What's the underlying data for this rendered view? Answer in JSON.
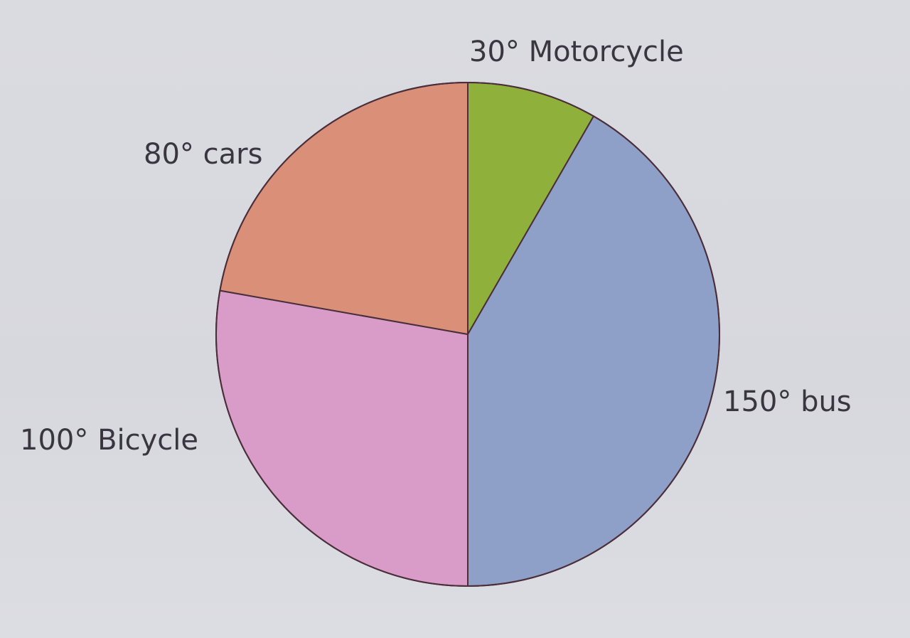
{
  "chart_data": {
    "type": "pie",
    "unit": "degrees",
    "slices": [
      {
        "label": "30° Motorcycle",
        "category": "Motorcycle",
        "value": 30,
        "color": "#8fb13c"
      },
      {
        "label": "150° bus",
        "category": "bus",
        "value": 150,
        "color": "#8e9fc8"
      },
      {
        "label": "100° Bicycle",
        "category": "Bicycle",
        "value": 100,
        "color": "#d99bc8"
      },
      {
        "label": "80° cars",
        "category": "cars",
        "value": 80,
        "color": "#d98f78"
      }
    ],
    "outline_color": "#4a2f3a"
  }
}
